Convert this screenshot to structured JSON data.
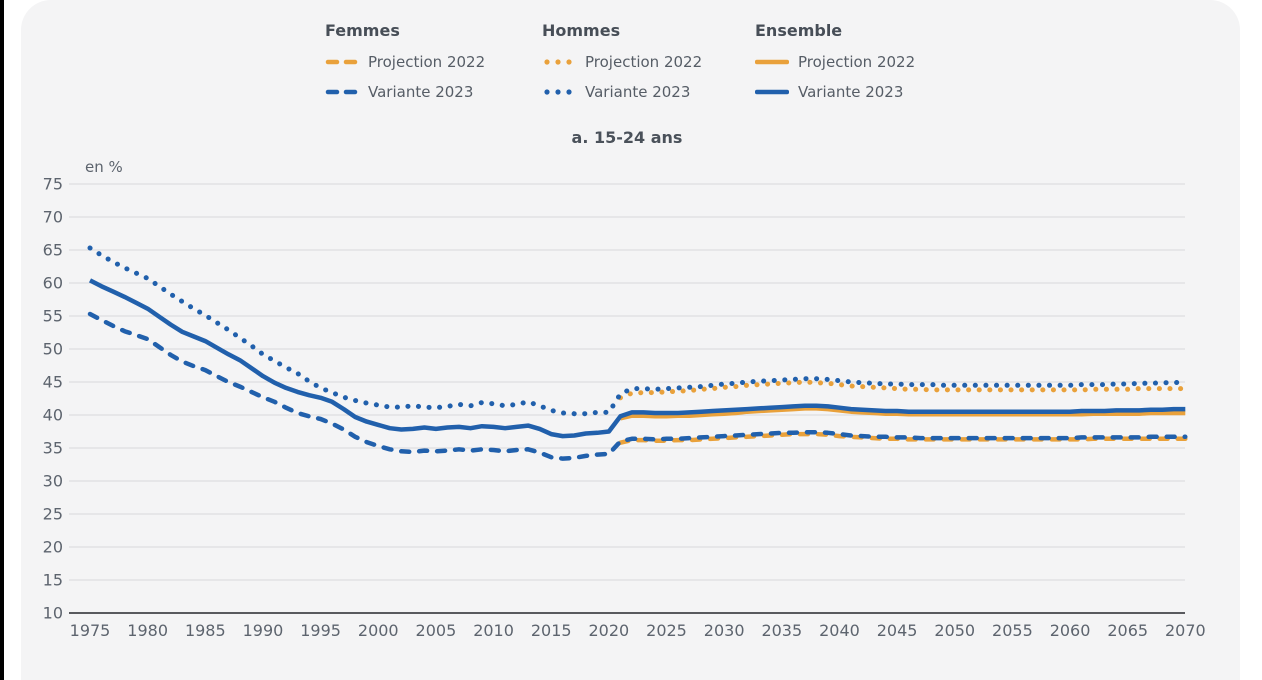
{
  "page": {
    "background_color": "#ffffff",
    "panel_color": "#f4f4f5",
    "edge_bar_color": "#000000"
  },
  "legend": {
    "groups": [
      {
        "label": "Femmes",
        "style": "dashed",
        "items": [
          {
            "label": "Projection 2022",
            "color": "#e9a13b"
          },
          {
            "label": "Variante 2023",
            "color": "#2160ac"
          }
        ]
      },
      {
        "label": "Hommes",
        "style": "dotted",
        "items": [
          {
            "label": "Projection 2022",
            "color": "#e9a13b"
          },
          {
            "label": "Variante 2023",
            "color": "#2160ac"
          }
        ]
      },
      {
        "label": "Ensemble",
        "style": "solid",
        "items": [
          {
            "label": "Projection 2022",
            "color": "#e9a13b"
          },
          {
            "label": "Variante 2023",
            "color": "#2160ac"
          }
        ]
      }
    ]
  },
  "chart_data": {
    "type": "line",
    "title": "a. 15-24 ans",
    "unit_label": "en %",
    "xlabel": "",
    "ylabel": "en %",
    "xlim": [
      1975,
      2070
    ],
    "ylim": [
      10,
      75
    ],
    "x_ticks": [
      1975,
      1980,
      1985,
      1990,
      1995,
      2000,
      2005,
      2010,
      2015,
      2020,
      2025,
      2030,
      2035,
      2040,
      2045,
      2050,
      2055,
      2060,
      2065,
      2070
    ],
    "y_ticks": [
      75,
      70,
      65,
      60,
      55,
      50,
      45,
      40,
      35,
      30,
      25,
      20,
      15,
      10
    ],
    "grid": true,
    "legend_position": "top",
    "colors": {
      "projection_2022": "#e9a13b",
      "variante_2023": "#2160ac",
      "gridline": "#d9d9db",
      "axis": "#595a5e"
    },
    "series": [
      {
        "name": "Hommes - Projection 2022",
        "group": "Hommes",
        "variant": "Projection 2022",
        "style": "dotted",
        "color": "#e9a13b",
        "start_year": 2021,
        "values": [
          42.6,
          43.3,
          43.4,
          43.4,
          43.5,
          43.6,
          43.7,
          43.9,
          44.0,
          44.2,
          44.3,
          44.5,
          44.6,
          44.7,
          44.8,
          44.9,
          45.0,
          44.9,
          44.8,
          44.6,
          44.4,
          44.3,
          44.2,
          44.1,
          44.0,
          43.9,
          43.9,
          43.8,
          43.8,
          43.8,
          43.8,
          43.8,
          43.8,
          43.8,
          43.8,
          43.8,
          43.8,
          43.8,
          43.8,
          43.8,
          43.8,
          43.9,
          43.9,
          43.9,
          43.9,
          44.0,
          44.0,
          44.0,
          44.0,
          44.0
        ]
      },
      {
        "name": "Hommes - Variante 2023",
        "group": "Hommes",
        "variant": "Variante 2023",
        "style": "dotted",
        "color": "#2160ac",
        "start_year": 1975,
        "values": [
          65.3,
          64.2,
          63.2,
          62.3,
          61.5,
          60.7,
          59.5,
          58.3,
          57.2,
          56.1,
          55.1,
          54.0,
          52.9,
          51.7,
          50.5,
          49.2,
          48.2,
          47.2,
          46.3,
          45.1,
          44.1,
          43.4,
          42.7,
          42.2,
          41.8,
          41.5,
          41.2,
          41.2,
          41.4,
          41.2,
          41.1,
          41.3,
          41.6,
          41.4,
          41.9,
          41.7,
          41.4,
          41.6,
          42.0,
          41.4,
          40.7,
          40.3,
          40.2,
          40.2,
          40.4,
          40.4,
          43.2,
          44.0,
          44.0,
          43.9,
          44.0,
          44.1,
          44.2,
          44.3,
          44.5,
          44.7,
          44.8,
          45.0,
          45.1,
          45.2,
          45.3,
          45.4,
          45.5,
          45.5,
          45.4,
          45.2,
          45.0,
          44.9,
          44.8,
          44.7,
          44.7,
          44.6,
          44.6,
          44.6,
          44.5,
          44.5,
          44.5,
          44.5,
          44.5,
          44.5,
          44.5,
          44.5,
          44.5,
          44.5,
          44.5,
          44.5,
          44.6,
          44.6,
          44.6,
          44.7,
          44.7,
          44.8,
          44.8,
          44.9,
          44.9,
          45.0
        ]
      },
      {
        "name": "Femmes - Projection 2022",
        "group": "Femmes",
        "variant": "Projection 2022",
        "style": "dashed",
        "color": "#e9a13b",
        "start_year": 2021,
        "values": [
          35.8,
          36.2,
          36.2,
          36.1,
          36.1,
          36.2,
          36.2,
          36.3,
          36.4,
          36.5,
          36.6,
          36.7,
          36.8,
          36.9,
          37.0,
          37.1,
          37.1,
          37.1,
          37.0,
          36.8,
          36.7,
          36.6,
          36.5,
          36.4,
          36.4,
          36.3,
          36.3,
          36.3,
          36.3,
          36.3,
          36.3,
          36.3,
          36.3,
          36.3,
          36.3,
          36.3,
          36.3,
          36.3,
          36.3,
          36.3,
          36.3,
          36.4,
          36.4,
          36.4,
          36.4,
          36.4,
          36.4,
          36.4,
          36.4,
          36.4
        ]
      },
      {
        "name": "Femmes - Variante 2023",
        "group": "Femmes",
        "variant": "Variante 2023",
        "style": "dashed",
        "color": "#2160ac",
        "start_year": 1975,
        "values": [
          55.3,
          54.4,
          53.5,
          52.7,
          52.1,
          51.5,
          50.3,
          49.1,
          48.1,
          47.4,
          46.8,
          45.9,
          45.0,
          44.3,
          43.5,
          42.7,
          42.0,
          41.1,
          40.3,
          39.8,
          39.4,
          38.7,
          37.8,
          36.7,
          35.9,
          35.3,
          34.8,
          34.5,
          34.4,
          34.6,
          34.5,
          34.6,
          34.8,
          34.6,
          34.8,
          34.7,
          34.5,
          34.7,
          34.8,
          34.3,
          33.6,
          33.4,
          33.5,
          33.8,
          34.0,
          34.1,
          36.0,
          36.4,
          36.4,
          36.3,
          36.4,
          36.4,
          36.5,
          36.6,
          36.7,
          36.8,
          36.9,
          37.0,
          37.1,
          37.2,
          37.3,
          37.3,
          37.4,
          37.4,
          37.3,
          37.1,
          36.9,
          36.8,
          36.7,
          36.7,
          36.6,
          36.6,
          36.5,
          36.5,
          36.5,
          36.5,
          36.5,
          36.5,
          36.5,
          36.5,
          36.5,
          36.5,
          36.5,
          36.5,
          36.5,
          36.5,
          36.6,
          36.6,
          36.6,
          36.6,
          36.6,
          36.6,
          36.7,
          36.7,
          36.7,
          36.7
        ]
      },
      {
        "name": "Ensemble - Projection 2022",
        "group": "Ensemble",
        "variant": "Projection 2022",
        "style": "solid",
        "color": "#e9a13b",
        "start_year": 2021,
        "values": [
          39.5,
          39.9,
          39.9,
          39.8,
          39.8,
          39.9,
          39.9,
          40.0,
          40.1,
          40.2,
          40.3,
          40.5,
          40.6,
          40.7,
          40.8,
          40.9,
          41.0,
          41.0,
          40.9,
          40.7,
          40.5,
          40.4,
          40.3,
          40.2,
          40.2,
          40.1,
          40.1,
          40.1,
          40.1,
          40.1,
          40.1,
          40.1,
          40.1,
          40.1,
          40.1,
          40.1,
          40.1,
          40.1,
          40.1,
          40.1,
          40.1,
          40.2,
          40.2,
          40.2,
          40.2,
          40.2,
          40.3,
          40.3,
          40.3,
          40.3
        ]
      },
      {
        "name": "Ensemble - Variante 2023",
        "group": "Ensemble",
        "variant": "Variante 2023",
        "style": "solid",
        "color": "#2160ac",
        "start_year": 1975,
        "values": [
          60.4,
          59.5,
          58.7,
          57.9,
          57.0,
          56.1,
          54.9,
          53.7,
          52.6,
          51.9,
          51.2,
          50.2,
          49.2,
          48.3,
          47.1,
          45.9,
          44.9,
          44.1,
          43.5,
          43.0,
          42.6,
          42.0,
          40.9,
          39.7,
          39.0,
          38.5,
          38.0,
          37.8,
          37.9,
          38.1,
          37.9,
          38.1,
          38.2,
          38.0,
          38.3,
          38.2,
          38.0,
          38.2,
          38.4,
          37.9,
          37.1,
          36.8,
          36.9,
          37.2,
          37.3,
          37.5,
          39.8,
          40.4,
          40.4,
          40.3,
          40.3,
          40.3,
          40.4,
          40.5,
          40.6,
          40.7,
          40.8,
          40.9,
          41.0,
          41.1,
          41.2,
          41.3,
          41.4,
          41.4,
          41.3,
          41.1,
          40.9,
          40.8,
          40.7,
          40.6,
          40.6,
          40.5,
          40.5,
          40.5,
          40.5,
          40.5,
          40.5,
          40.5,
          40.5,
          40.5,
          40.5,
          40.5,
          40.5,
          40.5,
          40.5,
          40.5,
          40.6,
          40.6,
          40.6,
          40.7,
          40.7,
          40.7,
          40.8,
          40.8,
          40.9,
          40.9
        ]
      }
    ]
  }
}
